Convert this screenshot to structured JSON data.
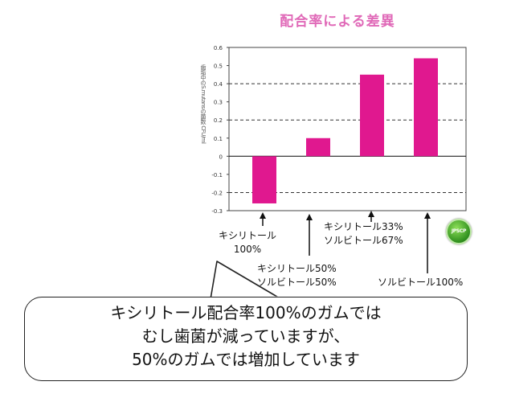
{
  "chart_data": {
    "type": "bar",
    "title": "配合率による差異",
    "ylabel": "歯垢中のS.mutansの菌数 CFU/ml",
    "xlabel": "",
    "categories": [
      [
        "キシリトール",
        "100%"
      ],
      [
        "キシリトール50%",
        "ソルビトール50%"
      ],
      [
        "キシリトール33%",
        "ソルビトール67%"
      ],
      [
        "ソルビトール100%"
      ]
    ],
    "values": [
      -0.26,
      0.1,
      0.45,
      0.54
    ],
    "ylim": [
      -0.3,
      0.6
    ],
    "yticks": [
      "0.6",
      "0.5",
      "0.4",
      "0.3",
      "0.2",
      "0.1",
      "0",
      "-0.1",
      "-0.2",
      "-0.3"
    ],
    "dashed_grid_at": [
      0.4,
      0.2,
      -0.2
    ],
    "grid": false,
    "legend": "none",
    "bar_color": "#e0188f"
  },
  "logo_text": "JPSCP",
  "callout": {
    "lines": [
      "キシリトール配合率100%のガムでは",
      "むし歯菌が減っていますが、",
      "50%のガムでは増加しています"
    ]
  }
}
